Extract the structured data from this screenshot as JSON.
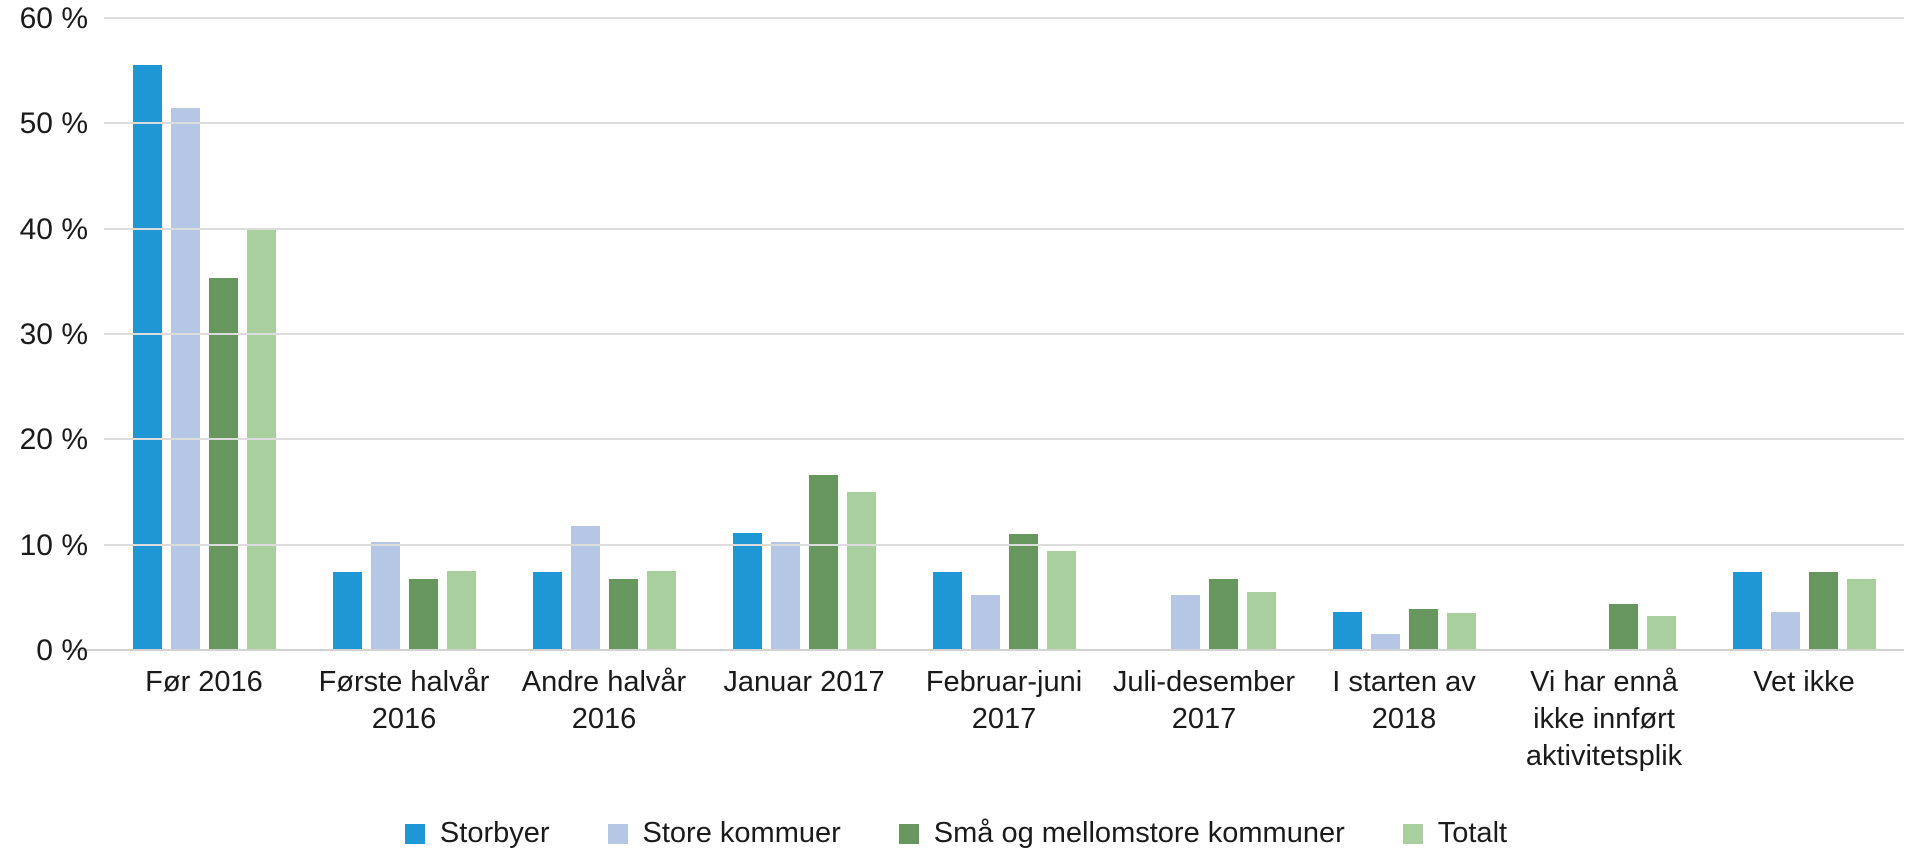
{
  "chart_data": {
    "type": "bar",
    "title": "",
    "xlabel": "",
    "ylabel": "",
    "ylim": [
      0,
      60
    ],
    "ytick_step": 10,
    "ytick_labels": [
      "0 %",
      "10 %",
      "20 %",
      "30 %",
      "40 %",
      "50 %",
      "60 %"
    ],
    "grid": true,
    "legend_position": "bottom",
    "categories": [
      "Før 2016",
      "Første halvår\n2016",
      "Andre halvår\n2016",
      "Januar 2017",
      "Februar-juni\n2017",
      "Juli-desember\n2017",
      "I starten av\n2018",
      "Vi har ennå\nikke innført\naktivitetsplik",
      "Vet ikke"
    ],
    "series": [
      {
        "name": "Storbyer",
        "color": "#1f97d4",
        "values": [
          55.5,
          7.4,
          7.4,
          11.1,
          7.4,
          0,
          3.6,
          0,
          7.4
        ]
      },
      {
        "name": "Store kommuer",
        "color": "#b6c7e5",
        "values": [
          51.5,
          10.3,
          11.8,
          10.3,
          5.2,
          5.2,
          1.5,
          0,
          3.6
        ]
      },
      {
        "name": "Små og mellomstore kommuner",
        "color": "#68965f",
        "values": [
          35.3,
          6.7,
          6.7,
          16.6,
          11.0,
          6.7,
          3.9,
          4.4,
          7.4
        ]
      },
      {
        "name": "Totalt",
        "color": "#a9cf9f",
        "values": [
          40.1,
          7.5,
          7.5,
          15.0,
          9.4,
          5.5,
          3.5,
          3.2,
          6.7
        ]
      }
    ]
  }
}
